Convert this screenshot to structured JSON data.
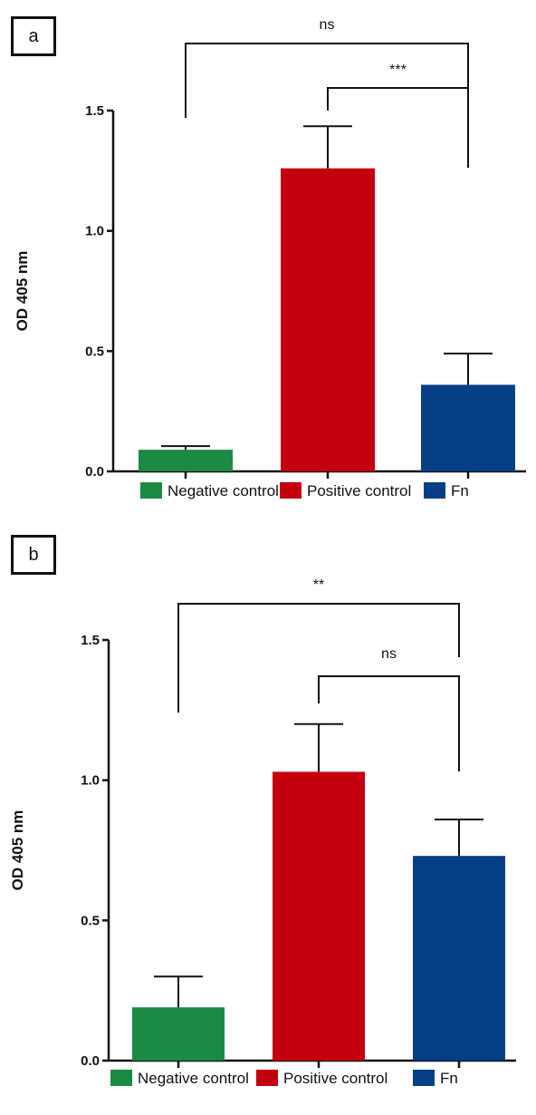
{
  "chart_data": [
    {
      "panel_label": "a",
      "type": "bar",
      "ylabel": "OD 405 nm",
      "ylim": [
        0,
        1.5
      ],
      "yticks": [
        "0.0",
        "0.5",
        "1.0",
        "1.5"
      ],
      "categories": [
        "Negative control",
        "Positive control",
        "Fn"
      ],
      "values": [
        0.09,
        1.26,
        0.36
      ],
      "errors": [
        0.015,
        0.175,
        0.13
      ],
      "colors": [
        "#1a8a45",
        "#c4000f",
        "#063f86"
      ],
      "legend": [
        "Negative control",
        "Positive control",
        "Fn"
      ],
      "legend_position": "bottom",
      "significance": [
        {
          "label": "ns",
          "from": 0,
          "to": 2
        },
        {
          "label": "***",
          "from": 1,
          "to": 2
        }
      ]
    },
    {
      "panel_label": "b",
      "type": "bar",
      "ylabel": "OD 405 nm",
      "ylim": [
        0,
        1.5
      ],
      "yticks": [
        "0.0",
        "0.5",
        "1.0",
        "1.5"
      ],
      "categories": [
        "Negative control",
        "Positive control",
        "Fn"
      ],
      "values": [
        0.19,
        1.03,
        0.73
      ],
      "errors": [
        0.11,
        0.17,
        0.13
      ],
      "colors": [
        "#1a8a45",
        "#c4000f",
        "#063f86"
      ],
      "legend": [
        "Negative control",
        "Positive control",
        "Fn"
      ],
      "legend_position": "bottom",
      "significance": [
        {
          "label": "**",
          "from": 0,
          "to": 2
        },
        {
          "label": "ns",
          "from": 1,
          "to": 2
        }
      ]
    }
  ]
}
